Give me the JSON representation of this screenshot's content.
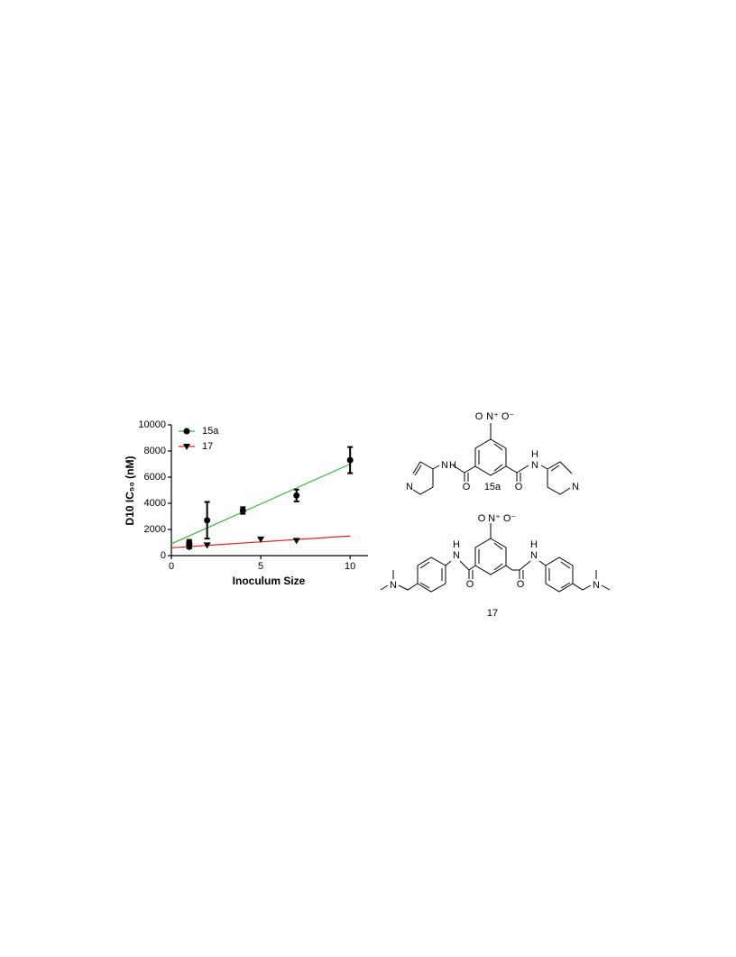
{
  "chart_data": {
    "type": "scatter",
    "x_label": "Inoculum Size",
    "y_label": "D10 IC₅₀ (nM)",
    "xlim": [
      0,
      11
    ],
    "ylim": [
      0,
      10000
    ],
    "xticks": [
      0,
      5,
      10
    ],
    "yticks": [
      0,
      2000,
      4000,
      6000,
      8000,
      10000
    ],
    "legend": "top-left",
    "series": [
      {
        "name": "15a",
        "color": "#000000",
        "marker": "circle",
        "fit_color": "#3cb43c",
        "x": [
          1,
          1,
          2,
          4,
          7,
          10
        ],
        "values": [
          1000,
          700,
          2700,
          3450,
          4600,
          7300
        ],
        "errors": [
          200,
          150,
          1400,
          250,
          450,
          1000
        ],
        "fit": {
          "x": [
            0,
            10
          ],
          "values": [
            900,
            7000
          ]
        }
      },
      {
        "name": "17",
        "color": "#000000",
        "marker": "triangle-down",
        "fit_color": "#e02020",
        "x": [
          1,
          2,
          5,
          7
        ],
        "values": [
          650,
          800,
          1250,
          1150
        ],
        "fit": {
          "x": [
            0,
            10
          ],
          "values": [
            600,
            1500
          ]
        }
      }
    ]
  },
  "structures": [
    {
      "label": "15a",
      "atoms": [
        "O",
        "N⁺",
        "O⁻",
        "N",
        "H",
        "O",
        "H",
        "N",
        "O",
        "N",
        "N"
      ]
    },
    {
      "label": "17",
      "atoms": [
        "O",
        "N⁺",
        "O⁻",
        "H",
        "N",
        "O",
        "H",
        "N",
        "O",
        "N",
        "N"
      ]
    }
  ]
}
